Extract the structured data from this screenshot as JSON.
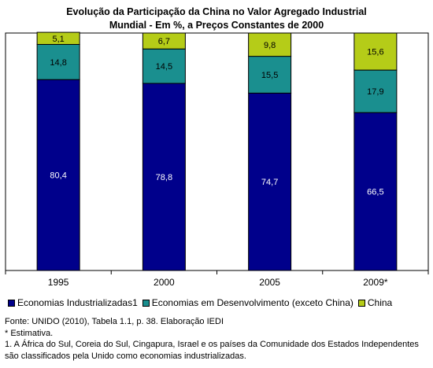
{
  "chart_data": {
    "type": "bar",
    "stacked": true,
    "title_line1": "Evolução da Participação da China no Valor Agregado Industrial",
    "title_line2": "Mundial - Em %, a Preços Constantes de 2000",
    "categories": [
      "1995",
      "2000",
      "2005",
      "2009*"
    ],
    "series": [
      {
        "name": "Economias Industrializadas1",
        "color": "#00008B",
        "label_color": "#ffffff",
        "values": [
          80.4,
          78.8,
          74.7,
          66.5
        ],
        "labels": [
          "80,4",
          "78,8",
          "74,7",
          "66,5"
        ]
      },
      {
        "name": "Economias em Desenvolvimento (exceto China)",
        "color": "#1A8F8F",
        "label_color": "#000000",
        "values": [
          14.8,
          14.5,
          15.5,
          17.9
        ],
        "labels": [
          "14,8",
          "14,5",
          "15,5",
          "17,9"
        ]
      },
      {
        "name": "China",
        "color": "#B5CC18",
        "label_color": "#000000",
        "values": [
          5.1,
          6.7,
          9.8,
          15.6
        ],
        "labels": [
          "5,1",
          "6,7",
          "9,8",
          "15,6"
        ]
      }
    ],
    "ylim": [
      0,
      100
    ],
    "grid": false,
    "legend_position": "bottom"
  },
  "footer": {
    "source": "Fonte: UNIDO (2010), Tabela 1.1, p. 38. Elaboração IEDI",
    "note_estimate": "* Estimativa.",
    "note_1_line1": "1. A África do Sul, Coreia do Sul, Cingapura, Israel e os países da Comunidade dos Estados Independentes",
    "note_1_line2": "são classificados pela Unido como economias industrializadas."
  }
}
